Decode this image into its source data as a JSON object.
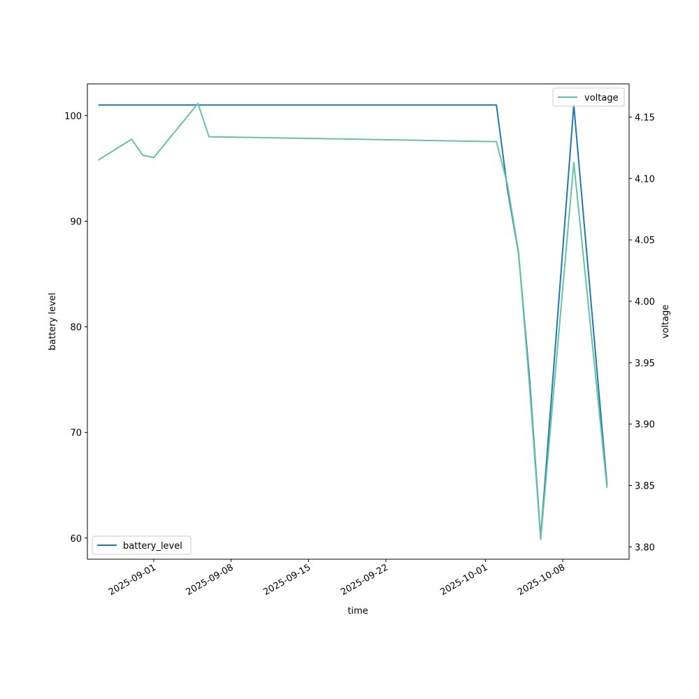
{
  "chart_data": {
    "type": "line",
    "xlabel": "time",
    "ylabel_left": "battery level",
    "ylabel_right": "voltage",
    "x_ticks": [
      "2025-09-01",
      "2025-09-08",
      "2025-09-15",
      "2025-09-22",
      "2025-10-01",
      "2025-10-08"
    ],
    "y_left_ticks": [
      "60",
      "70",
      "80",
      "90",
      "100"
    ],
    "y_right_ticks": [
      "3.80",
      "3.85",
      "3.90",
      "3.95",
      "4.00",
      "4.05",
      "4.10",
      "4.15"
    ],
    "x_range": [
      "2025-08-26",
      "2025-10-14"
    ],
    "y_left_range": [
      58,
      103
    ],
    "y_right_range": [
      3.79,
      4.177
    ],
    "series": [
      {
        "name": "battery_level",
        "axis": "left",
        "color": "#1f77b4",
        "legend": "lower-left",
        "points": [
          [
            "2025-08-27",
            101
          ],
          [
            "2025-10-02",
            101
          ],
          [
            "2025-10-03",
            93
          ],
          [
            "2025-10-04",
            87
          ],
          [
            "2025-10-05",
            75
          ],
          [
            "2025-10-06",
            60
          ],
          [
            "2025-10-09",
            101
          ],
          [
            "2025-10-12",
            65
          ]
        ]
      },
      {
        "name": "voltage",
        "axis": "right",
        "color": "#66c2a5",
        "legend": "upper-right",
        "points": [
          [
            "2025-08-27",
            4.115
          ],
          [
            "2025-08-30",
            4.132
          ],
          [
            "2025-08-31",
            4.119
          ],
          [
            "2025-09-01",
            4.117
          ],
          [
            "2025-09-05",
            4.161
          ],
          [
            "2025-09-06",
            4.134
          ],
          [
            "2025-10-02",
            4.13
          ],
          [
            "2025-10-03",
            4.095
          ],
          [
            "2025-10-04",
            4.04
          ],
          [
            "2025-10-05",
            3.93
          ],
          [
            "2025-10-06",
            3.806
          ],
          [
            "2025-10-09",
            4.113
          ],
          [
            "2025-10-12",
            3.848
          ]
        ]
      }
    ]
  }
}
